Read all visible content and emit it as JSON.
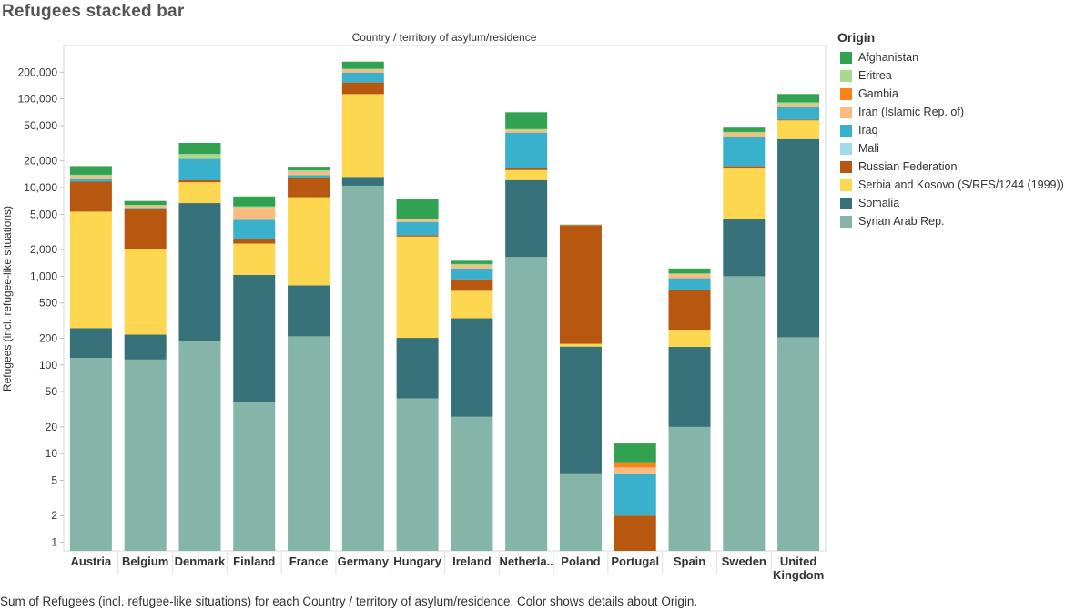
{
  "title": "Refugees stacked bar",
  "caption": "Sum of Refugees (incl. refugee-like situations) for each Country / territory of asylum/residence.  Color shows details about Origin.",
  "legend": {
    "title": "Origin",
    "items": [
      {
        "label": "Afghanistan",
        "color": "#33a152"
      },
      {
        "label": "Eritrea",
        "color": "#a8d88c"
      },
      {
        "label": "Gambia",
        "color": "#fb8215"
      },
      {
        "label": "Iran (Islamic Rep. of)",
        "color": "#fcbb7e"
      },
      {
        "label": "Iraq",
        "color": "#3ab1cc"
      },
      {
        "label": "Mali",
        "color": "#9fdbe8"
      },
      {
        "label": "Russian Federation",
        "color": "#b8570f"
      },
      {
        "label": "Serbia and Kosovo (S/RES/1244 (1999))",
        "color": "#fed750"
      },
      {
        "label": "Somalia",
        "color": "#37717a"
      },
      {
        "label": "Syrian Arab Rep.",
        "color": "#85b4a8"
      }
    ]
  },
  "chart_data": {
    "type": "bar",
    "stacked": true,
    "title": "Country / territory of asylum/residence",
    "xlabel": "",
    "ylabel": "Refugees (incl. refugee-like situations)",
    "yscale": "log",
    "ylim": [
      0.8,
      400000
    ],
    "yticks": [
      {
        "value": 1,
        "label": "1"
      },
      {
        "value": 2,
        "label": "2"
      },
      {
        "value": 5,
        "label": "5"
      },
      {
        "value": 10,
        "label": "10"
      },
      {
        "value": 20,
        "label": "20"
      },
      {
        "value": 50,
        "label": "50"
      },
      {
        "value": 100,
        "label": "100"
      },
      {
        "value": 200,
        "label": "200"
      },
      {
        "value": 500,
        "label": "500"
      },
      {
        "value": 1000,
        "label": "1,000"
      },
      {
        "value": 2000,
        "label": "2,000"
      },
      {
        "value": 5000,
        "label": "5,000"
      },
      {
        "value": 10000,
        "label": "10,000"
      },
      {
        "value": 20000,
        "label": "20,000"
      },
      {
        "value": 50000,
        "label": "50,000"
      },
      {
        "value": 100000,
        "label": "100,000"
      },
      {
        "value": 200000,
        "label": "200,000"
      }
    ],
    "categories": [
      "Austria",
      "Belgium",
      "Denmark",
      "Finland",
      "France",
      "Germany",
      "Hungary",
      "Ireland",
      "Netherla..",
      "Poland",
      "Portugal",
      "Spain",
      "Sweden",
      "United\nKingdom"
    ],
    "series": [
      {
        "name": "Syrian Arab Rep.",
        "values": [
          120,
          115,
          185,
          38,
          210,
          10500,
          42,
          26,
          1650,
          6,
          0,
          20,
          1000,
          205
        ]
      },
      {
        "name": "Somalia",
        "values": [
          140,
          105,
          6500,
          1000,
          580,
          2700,
          160,
          310,
          10500,
          155,
          0,
          140,
          3400,
          35000
        ]
      },
      {
        "name": "Serbia and Kosovo (S/RES/1244 (1999))",
        "values": [
          5100,
          1800,
          4800,
          1300,
          7000,
          100000,
          2600,
          350,
          3600,
          12,
          0,
          90,
          12000,
          22000
        ]
      },
      {
        "name": "Russian Federation",
        "values": [
          6300,
          3700,
          600,
          300,
          5000,
          40000,
          100,
          240,
          900,
          3600,
          2,
          450,
          1000,
          1200
        ]
      },
      {
        "name": "Mali",
        "values": [
          0,
          0,
          0,
          0,
          0,
          0,
          0,
          0,
          0,
          0,
          0,
          0,
          0,
          0
        ]
      },
      {
        "name": "Iraq",
        "values": [
          800,
          200,
          9000,
          1700,
          1000,
          45000,
          1200,
          300,
          25000,
          10,
          4,
          250,
          20000,
          22000
        ]
      },
      {
        "name": "Iran (Islamic Rep. of)",
        "values": [
          1000,
          250,
          800,
          1600,
          1200,
          15000,
          250,
          100,
          2500,
          15,
          1,
          100,
          3500,
          6000
        ]
      },
      {
        "name": "Gambia",
        "values": [
          0,
          0,
          0,
          0,
          0,
          0,
          0,
          0,
          0,
          0,
          1,
          0,
          0,
          0
        ]
      },
      {
        "name": "Eritrea",
        "values": [
          500,
          200,
          2000,
          200,
          700,
          5000,
          50,
          50,
          1500,
          10,
          0,
          25,
          1500,
          5000
        ]
      },
      {
        "name": "Afghanistan",
        "values": [
          3500,
          700,
          8000,
          1800,
          1500,
          45000,
          3000,
          120,
          25000,
          20,
          5,
          150,
          5000,
          22000
        ]
      }
    ]
  }
}
